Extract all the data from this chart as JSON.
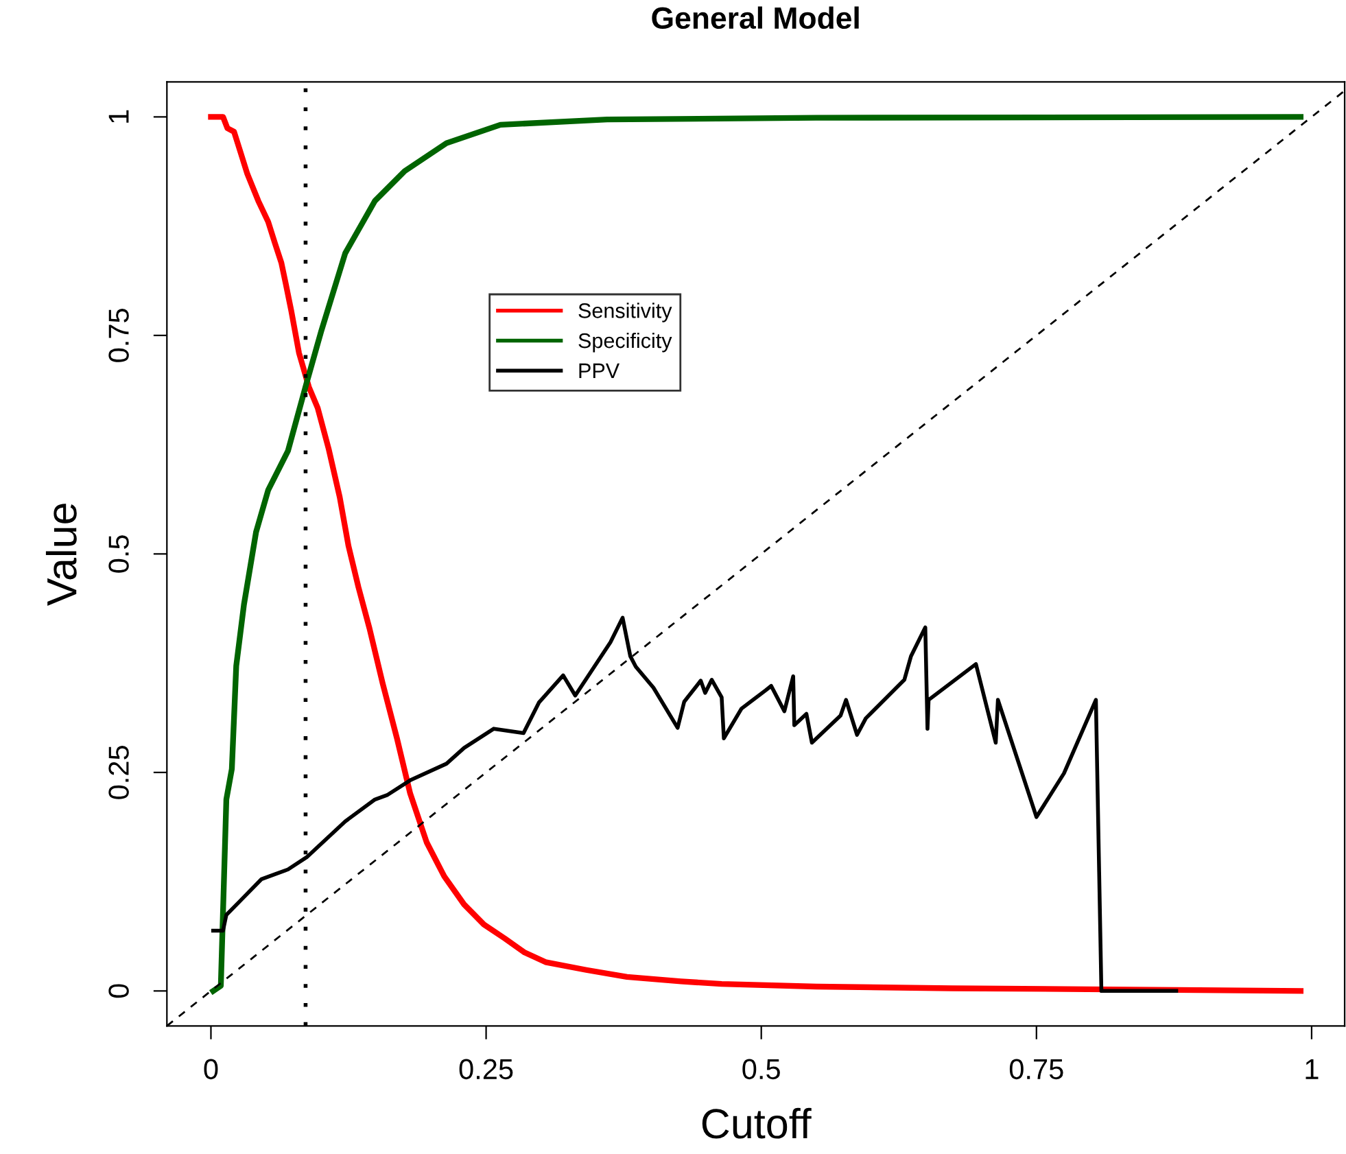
{
  "chart_data": {
    "type": "line",
    "title": "General Model",
    "xlabel": "Cutoff",
    "ylabel": "Value",
    "xlim": [
      -0.04,
      1.03
    ],
    "ylim": [
      -0.04,
      1.04
    ],
    "xticks": [
      0,
      0.25,
      0.5,
      0.75,
      1
    ],
    "yticks": [
      0,
      0.25,
      0.5,
      0.75,
      1
    ],
    "grid": false,
    "legend": "top left",
    "marker": "none",
    "ref_lines": [
      {
        "axis": "x",
        "value": 0.086,
        "color": "#000000",
        "line_style": "dotted"
      }
    ],
    "series": [
      {
        "name": "Sensitivity",
        "color": "#ff0000",
        "line_style": "solid",
        "x": [
          0,
          0.011,
          0.015,
          0.021,
          0.027,
          0.033,
          0.043,
          0.052,
          0.058,
          0.064,
          0.068,
          0.073,
          0.08,
          0.089,
          0.097,
          0.107,
          0.117,
          0.125,
          0.134,
          0.144,
          0.156,
          0.169,
          0.181,
          0.196,
          0.212,
          0.23,
          0.248,
          0.267,
          0.285,
          0.304,
          0.341,
          0.378,
          0.427,
          0.464,
          0.55,
          0.673,
          0.796,
          0.99
        ],
        "values": [
          1,
          1,
          0.987,
          0.983,
          0.959,
          0.935,
          0.904,
          0.88,
          0.856,
          0.833,
          0.809,
          0.778,
          0.73,
          0.691,
          0.667,
          0.62,
          0.565,
          0.509,
          0.462,
          0.415,
          0.352,
          0.289,
          0.226,
          0.17,
          0.131,
          0.099,
          0.076,
          0.06,
          0.044,
          0.033,
          0.024,
          0.016,
          0.011,
          0.008,
          0.005,
          0.003,
          0.002,
          0
        ]
      },
      {
        "name": "Specificity",
        "color": "#006400",
        "line_style": "solid",
        "x": [
          0.002,
          0.009,
          0.014,
          0.019,
          0.023,
          0.03,
          0.041,
          0.052,
          0.07,
          0.087,
          0.1,
          0.122,
          0.149,
          0.176,
          0.214,
          0.263,
          0.36,
          0.55,
          0.99
        ],
        "values": [
          0,
          0.006,
          0.219,
          0.254,
          0.372,
          0.442,
          0.525,
          0.573,
          0.618,
          0.696,
          0.754,
          0.844,
          0.904,
          0.938,
          0.97,
          0.991,
          0.997,
          0.999,
          1
        ]
      },
      {
        "name": "PPV",
        "color": "#000000",
        "line_style": "solid",
        "x": [
          0.002,
          0.011,
          0.014,
          0.025,
          0.046,
          0.07,
          0.087,
          0.122,
          0.149,
          0.16,
          0.181,
          0.214,
          0.23,
          0.257,
          0.284,
          0.298,
          0.32,
          0.331,
          0.363,
          0.374,
          0.381,
          0.386,
          0.402,
          0.424,
          0.43,
          0.445,
          0.449,
          0.455,
          0.464,
          0.466,
          0.482,
          0.504,
          0.509,
          0.521,
          0.529,
          0.53,
          0.541,
          0.546,
          0.572,
          0.577,
          0.587,
          0.595,
          0.63,
          0.636,
          0.649,
          0.651,
          0.652,
          0.695,
          0.713,
          0.715,
          0.75,
          0.775,
          0.804,
          0.809,
          0.877
        ],
        "values": [
          0.069,
          0.069,
          0.087,
          0.101,
          0.128,
          0.139,
          0.153,
          0.194,
          0.219,
          0.224,
          0.241,
          0.26,
          0.278,
          0.3,
          0.295,
          0.33,
          0.361,
          0.338,
          0.399,
          0.427,
          0.383,
          0.371,
          0.347,
          0.301,
          0.331,
          0.355,
          0.341,
          0.356,
          0.336,
          0.289,
          0.323,
          0.344,
          0.349,
          0.32,
          0.36,
          0.304,
          0.317,
          0.284,
          0.315,
          0.333,
          0.293,
          0.312,
          0.356,
          0.383,
          0.416,
          0.3,
          0.333,
          0.374,
          0.284,
          0.333,
          0.199,
          0.249,
          0.333,
          0,
          0
        ]
      },
      {
        "color": "#000000",
        "line_style": "dashed",
        "x": [
          -0.04,
          1.03
        ],
        "values": [
          -0.04,
          1.03
        ]
      }
    ]
  }
}
